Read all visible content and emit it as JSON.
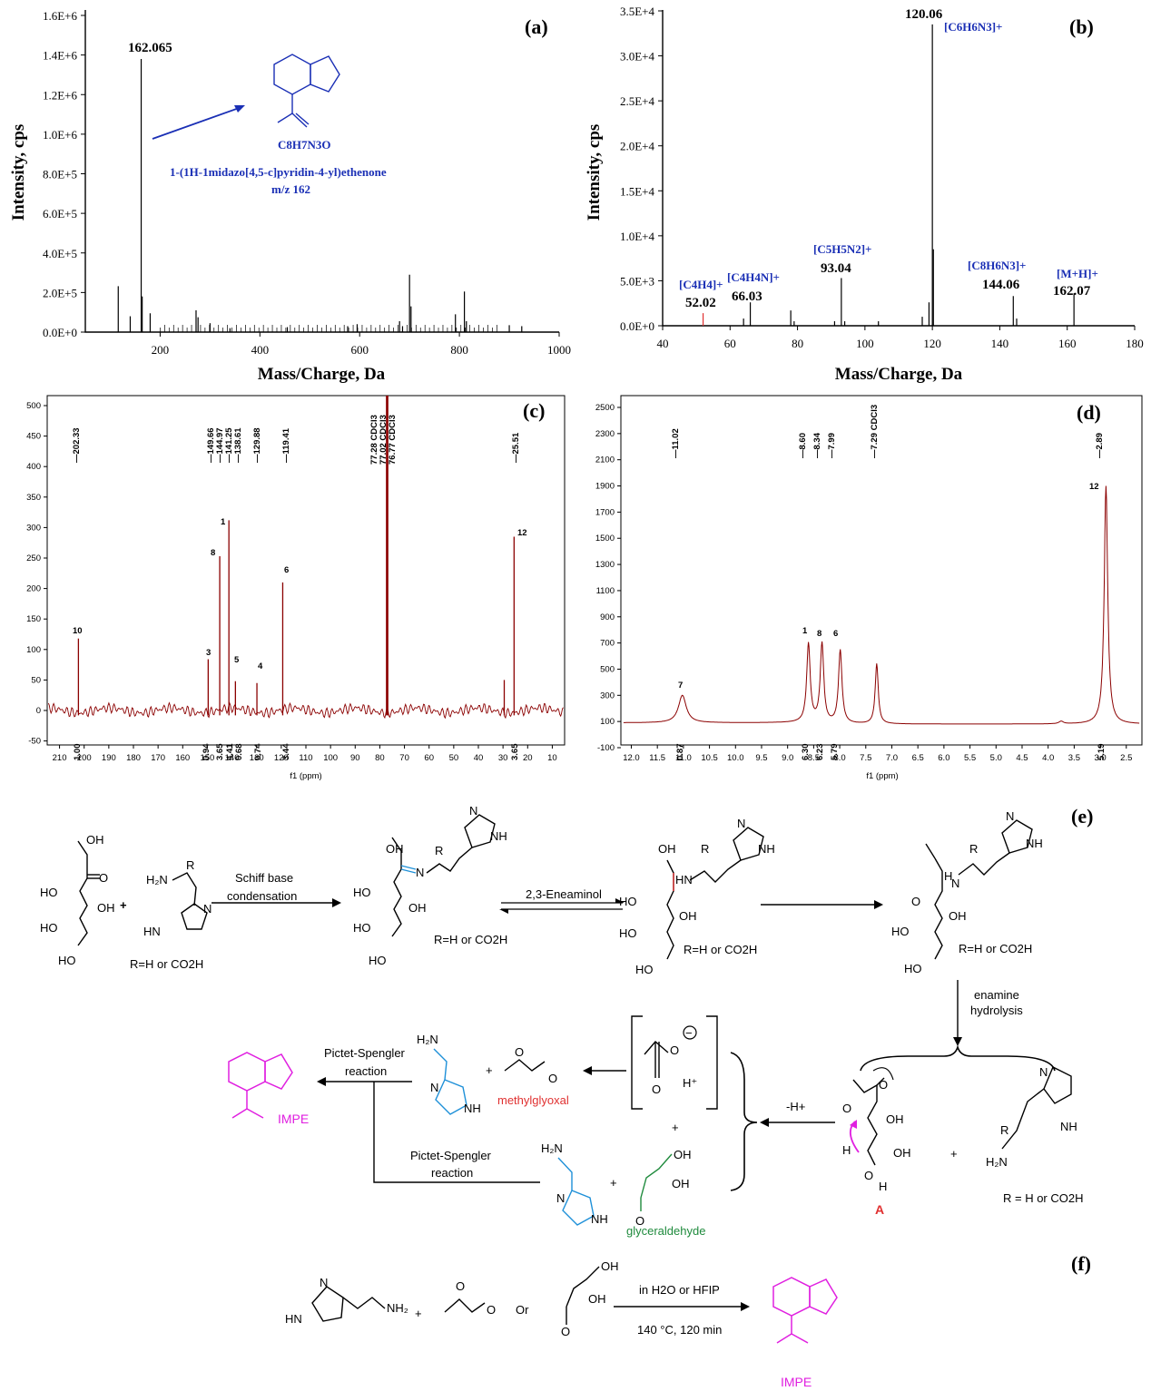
{
  "colors": {
    "ms_a": "#000000",
    "ms_b": "#000000",
    "nmr": "#8b0000",
    "blue": "#1a2fb5",
    "green": "#2e8b2e",
    "red": "#e03030",
    "magenta": "#e020e0",
    "cyan": "#1e90d8",
    "darkgreen": "#1e8a3c"
  },
  "panel_a": {
    "label": "(a)",
    "xlabel": "Mass/Charge, Da",
    "ylabel": "Intensity, cps",
    "yticks": [
      "0.0E+0",
      "2.0E+5",
      "4.0E+5",
      "6.0E+5",
      "8.0E+5",
      "1.0E+6",
      "1.2E+6",
      "1.4E+6",
      "1.6E+6"
    ],
    "xticks": [
      "200",
      "400",
      "600",
      "800",
      "1000"
    ],
    "peak_label": "162.065",
    "formula": "C8H7N3O",
    "name": "1-(1H-1midazo[4,5-c]pyridin-4-yl)ethenone",
    "mz": "m/z 162"
  },
  "panel_b": {
    "label": "(b)",
    "xlabel": "Mass/Charge, Da",
    "ylabel": "Intensity, cps",
    "yticks": [
      "0.0E+0",
      "5.0E+3",
      "1.0E+4",
      "1.5E+4",
      "2.0E+4",
      "2.5E+4",
      "3.0E+4",
      "3.5E+4"
    ],
    "xticks": [
      "40",
      "60",
      "80",
      "100",
      "120",
      "140",
      "160",
      "180"
    ],
    "annotations": [
      {
        "formula": "[C6H6N3]+",
        "mz": "120.06"
      },
      {
        "formula": "[C5H5N2]+",
        "mz": "93.04"
      },
      {
        "formula": "[C4H4]+",
        "mz": "52.02"
      },
      {
        "formula": "[C4H4N]+",
        "mz": "66.03"
      },
      {
        "formula": "[C8H6N3]+",
        "mz": "144.06"
      },
      {
        "formula": "[M+H]+",
        "mz": "162.07"
      }
    ]
  },
  "panel_c": {
    "label": "(c)",
    "xlabel": "f1 (ppm)",
    "yticks": [
      "-50",
      "0",
      "50",
      "100",
      "150",
      "200",
      "250",
      "300",
      "350",
      "400",
      "450",
      "500"
    ],
    "xticks": [
      "210",
      "200",
      "190",
      "180",
      "170",
      "160",
      "150",
      "140",
      "130",
      "120",
      "110",
      "100",
      "90",
      "80",
      "70",
      "60",
      "50",
      "40",
      "30",
      "20",
      "10"
    ],
    "shifts": [
      "202.33",
      "149.66",
      "144.97",
      "141.25",
      "138.61",
      "129.88",
      "119.41",
      "25.51"
    ],
    "solvent": [
      "77.28 CDCl3",
      "77.02 CDCl3",
      "76.77 CDCl3"
    ],
    "integrals": [
      "1.00",
      "0.94",
      "3.65",
      "4.41",
      "0.68",
      "0.74",
      "3.44",
      "3.65"
    ],
    "peak_ids": [
      "10",
      "3",
      "8",
      "1",
      "5",
      "4",
      "6",
      "12"
    ]
  },
  "panel_d": {
    "label": "(d)",
    "xlabel": "f1 (ppm)",
    "yticks": [
      "-100",
      "100",
      "300",
      "500",
      "700",
      "900",
      "1100",
      "1300",
      "1500",
      "1700",
      "1900",
      "2100",
      "2300",
      "2500"
    ],
    "xticks": [
      "12.0",
      "11.5",
      "11.0",
      "10.5",
      "10.0",
      "9.5",
      "9.0",
      "8.5",
      "8.0",
      "7.5",
      "7.0",
      "6.5",
      "6.0",
      "5.5",
      "5.0",
      "4.5",
      "4.0",
      "3.5",
      "3.0",
      "2.5"
    ],
    "shifts": [
      "11.02",
      "8.60",
      "8.34",
      "7.99",
      "2.89"
    ],
    "solvent": "7.29 CDCl3",
    "integrals": [
      "0.87",
      "6.30",
      "6.23",
      "5.79",
      "5.19"
    ],
    "peak_ids": [
      "7",
      "1",
      "8",
      "6",
      "12"
    ]
  },
  "panel_e": {
    "label": "(e)",
    "step1": "Schiff base",
    "step1b": "condensation",
    "step2": "2,3-Eneaminol",
    "step3": "enamine",
    "step3b": "hydrolysis",
    "rgroup": "R=H or CO2H",
    "rgroup2": "R = H or CO2H",
    "pictet": "Pictet-Spengler",
    "reaction": "reaction",
    "methylglyoxal": "methylglyoxal",
    "glyceraldehyde": "glyceraldehyde",
    "minus_h": "-H+",
    "intermediate": "A",
    "product": "IMPE"
  },
  "panel_f": {
    "label": "(f)",
    "cond1": "in H2O or HFIP",
    "cond2": "140 °C, 120 min",
    "or": "Or",
    "product": "IMPE"
  }
}
